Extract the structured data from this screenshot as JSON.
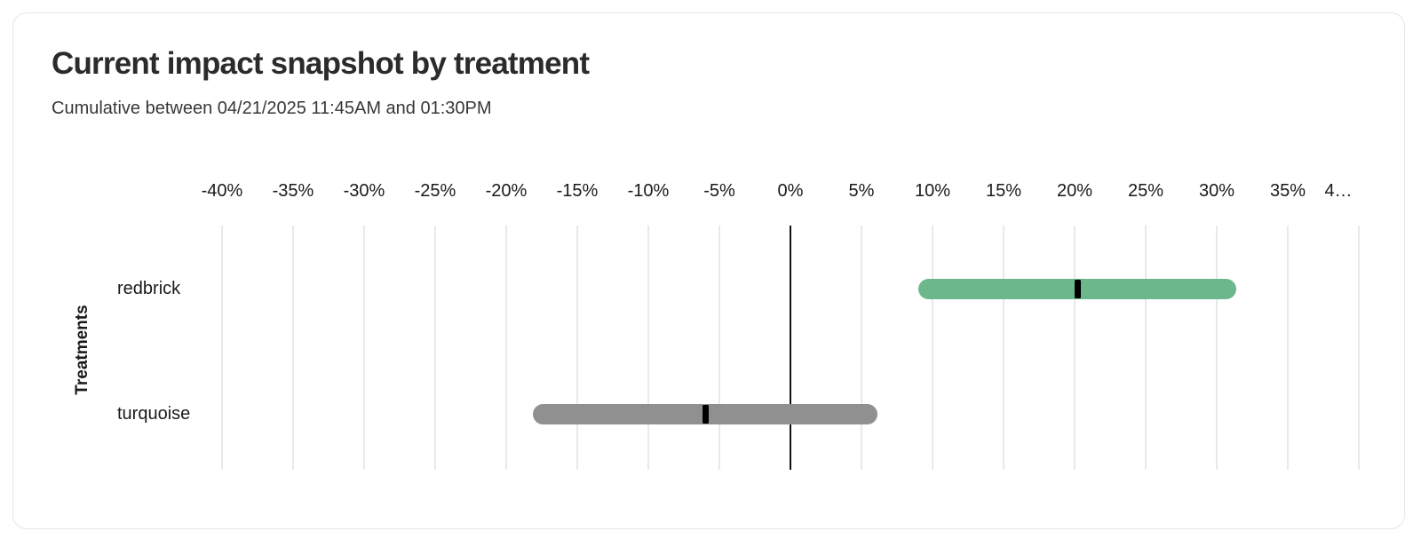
{
  "header": {
    "title": "Current impact snapshot by treatment",
    "subtitle": "Cumulative between 04/21/2025 11:45AM and 01:30PM"
  },
  "chart_data": {
    "type": "bar",
    "variant": "horizontal-range-bar-with-point-estimate",
    "title": "Current impact snapshot by treatment",
    "subtitle": "Cumulative between 04/21/2025 11:45AM and 01:30PM",
    "xlabel": "",
    "ylabel": "Treatments",
    "x_unit": "percent",
    "xlim": [
      -40,
      40
    ],
    "x_ticks": [
      -40,
      -35,
      -30,
      -25,
      -20,
      -15,
      -10,
      -5,
      0,
      5,
      10,
      15,
      20,
      25,
      30,
      35,
      40
    ],
    "x_tick_labels": [
      "-40%",
      "-35%",
      "-30%",
      "-25%",
      "-20%",
      "-15%",
      "-10%",
      "-5%",
      "0%",
      "5%",
      "10%",
      "15%",
      "20%",
      "25%",
      "30%",
      "35%",
      "4…"
    ],
    "grid": true,
    "legend": false,
    "zero_line": true,
    "categories": [
      "redbrick",
      "turquoise"
    ],
    "series": [
      {
        "name": "redbrick",
        "range_low": 9.0,
        "range_high": 31.4,
        "point_estimate": 20.2,
        "color": "#6db78c"
      },
      {
        "name": "turquoise",
        "range_low": -18.1,
        "range_high": 6.1,
        "point_estimate": -6.0,
        "color": "#909090"
      }
    ]
  },
  "colors": {
    "card_background": "#ffffff",
    "card_border": "#e5e5e5",
    "grid_line": "#e9e9e9",
    "zero_line": "#111111",
    "title_text": "#2b2b2b",
    "subtitle_text": "#373737",
    "axis_text": "#1a1a1a",
    "point_marker": "#000000"
  }
}
